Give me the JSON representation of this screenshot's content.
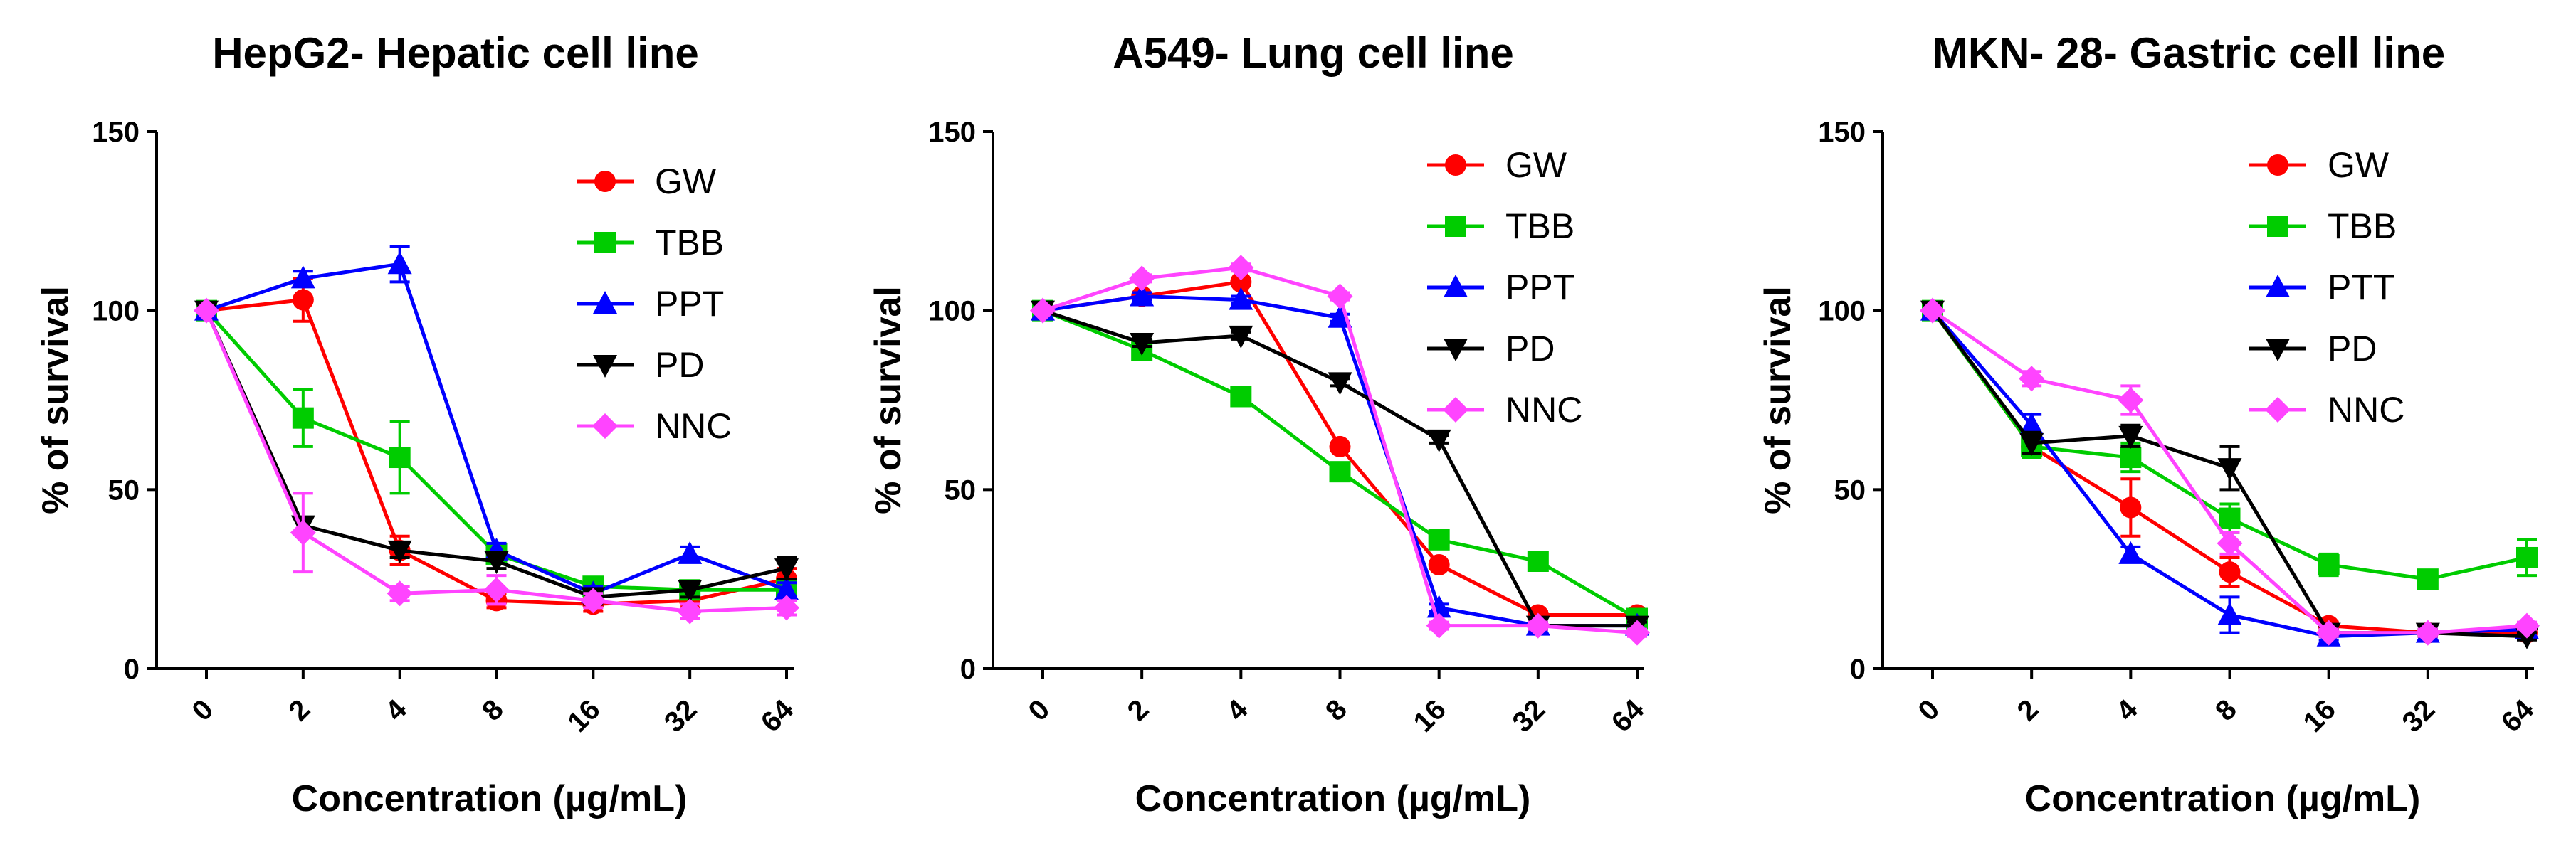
{
  "chart_data": [
    {
      "type": "line",
      "title": "HepG2- Hepatic cell line",
      "xlabel": "Concentration (µg/mL)",
      "ylabel": "% of survival",
      "categories": [
        "0",
        "2",
        "4",
        "8",
        "16",
        "32",
        "64"
      ],
      "ylim": [
        0,
        150
      ],
      "yticks": [
        0,
        50,
        100,
        150
      ],
      "grid": false,
      "legend_position": "top-right",
      "series": [
        {
          "name": "GW",
          "color": "#ff0000",
          "marker": "circle",
          "values": [
            100,
            103,
            33,
            19,
            18,
            19,
            25
          ],
          "errors": [
            0,
            6,
            4,
            2,
            2,
            2,
            3
          ]
        },
        {
          "name": "TBB",
          "color": "#00cc00",
          "marker": "square",
          "values": [
            100,
            70,
            59,
            32,
            23,
            22,
            22
          ],
          "errors": [
            0,
            8,
            10,
            2,
            2,
            2,
            2
          ]
        },
        {
          "name": "PPT",
          "color": "#0000ff",
          "marker": "triangle-up",
          "values": [
            100,
            109,
            113,
            33,
            21,
            32,
            22
          ],
          "errors": [
            0,
            2,
            5,
            2,
            2,
            2,
            2
          ]
        },
        {
          "name": "PD",
          "color": "#000000",
          "marker": "triangle-down",
          "values": [
            100,
            40,
            33,
            30,
            20,
            22,
            28
          ],
          "errors": [
            0,
            2,
            2,
            2,
            2,
            2,
            3
          ]
        },
        {
          "name": "NNC",
          "color": "#ff44ff",
          "marker": "diamond",
          "values": [
            100,
            38,
            21,
            22,
            19,
            16,
            17
          ],
          "errors": [
            0,
            11,
            2,
            4,
            2,
            2,
            2
          ]
        }
      ]
    },
    {
      "type": "line",
      "title": "A549- Lung cell line",
      "xlabel": "Concentration (µg/mL)",
      "ylabel": "% of survival",
      "categories": [
        "0",
        "2",
        "4",
        "8",
        "16",
        "32",
        "64"
      ],
      "ylim": [
        0,
        150
      ],
      "yticks": [
        0,
        50,
        100,
        150
      ],
      "grid": false,
      "legend_position": "top-right",
      "series": [
        {
          "name": "GW",
          "color": "#ff0000",
          "marker": "circle",
          "values": [
            100,
            104,
            108,
            62,
            29,
            15,
            15
          ],
          "errors": [
            0,
            1,
            1,
            1,
            1,
            1,
            1
          ]
        },
        {
          "name": "TBB",
          "color": "#00cc00",
          "marker": "square",
          "values": [
            100,
            89,
            76,
            55,
            36,
            30,
            14
          ],
          "errors": [
            0,
            1,
            1,
            1,
            1,
            1,
            1
          ]
        },
        {
          "name": "PPT",
          "color": "#0000ff",
          "marker": "triangle-up",
          "values": [
            100,
            104,
            103,
            98,
            17,
            12,
            12
          ],
          "errors": [
            0,
            1,
            1,
            1,
            1,
            1,
            1
          ]
        },
        {
          "name": "PD",
          "color": "#000000",
          "marker": "triangle-down",
          "values": [
            100,
            91,
            93,
            80,
            64,
            12,
            12
          ],
          "errors": [
            0,
            1,
            1,
            1,
            1,
            1,
            1
          ]
        },
        {
          "name": "NNC",
          "color": "#ff44ff",
          "marker": "diamond",
          "values": [
            100,
            109,
            112,
            104,
            12,
            12,
            10
          ],
          "errors": [
            0,
            1,
            1,
            1,
            1,
            1,
            1
          ]
        }
      ]
    },
    {
      "type": "line",
      "title": "MKN- 28- Gastric cell line",
      "xlabel": "Concentration (µg/mL)",
      "ylabel": "% of survival",
      "categories": [
        "0",
        "2",
        "4",
        "8",
        "16",
        "32",
        "64"
      ],
      "ylim": [
        0,
        150
      ],
      "yticks": [
        0,
        50,
        100,
        150
      ],
      "grid": false,
      "legend_position": "top-right",
      "series": [
        {
          "name": "GW",
          "color": "#ff0000",
          "marker": "circle",
          "values": [
            100,
            62,
            45,
            27,
            12,
            10,
            10
          ],
          "errors": [
            0,
            3,
            8,
            4,
            1,
            1,
            1
          ]
        },
        {
          "name": "TBB",
          "color": "#00cc00",
          "marker": "square",
          "values": [
            100,
            62,
            59,
            42,
            29,
            25,
            31
          ],
          "errors": [
            0,
            3,
            4,
            4,
            3,
            2,
            5
          ]
        },
        {
          "name": "PTT",
          "color": "#0000ff",
          "marker": "triangle-up",
          "values": [
            100,
            68,
            32,
            15,
            9,
            10,
            11
          ],
          "errors": [
            0,
            3,
            2,
            5,
            1,
            1,
            1
          ]
        },
        {
          "name": "PD",
          "color": "#000000",
          "marker": "triangle-down",
          "values": [
            100,
            63,
            65,
            56,
            10,
            10,
            9
          ],
          "errors": [
            0,
            3,
            3,
            6,
            1,
            1,
            1
          ]
        },
        {
          "name": "NNC",
          "color": "#ff44ff",
          "marker": "diamond",
          "values": [
            100,
            81,
            75,
            35,
            10,
            10,
            12
          ],
          "errors": [
            0,
            2,
            4,
            3,
            1,
            1,
            1
          ]
        }
      ]
    }
  ]
}
